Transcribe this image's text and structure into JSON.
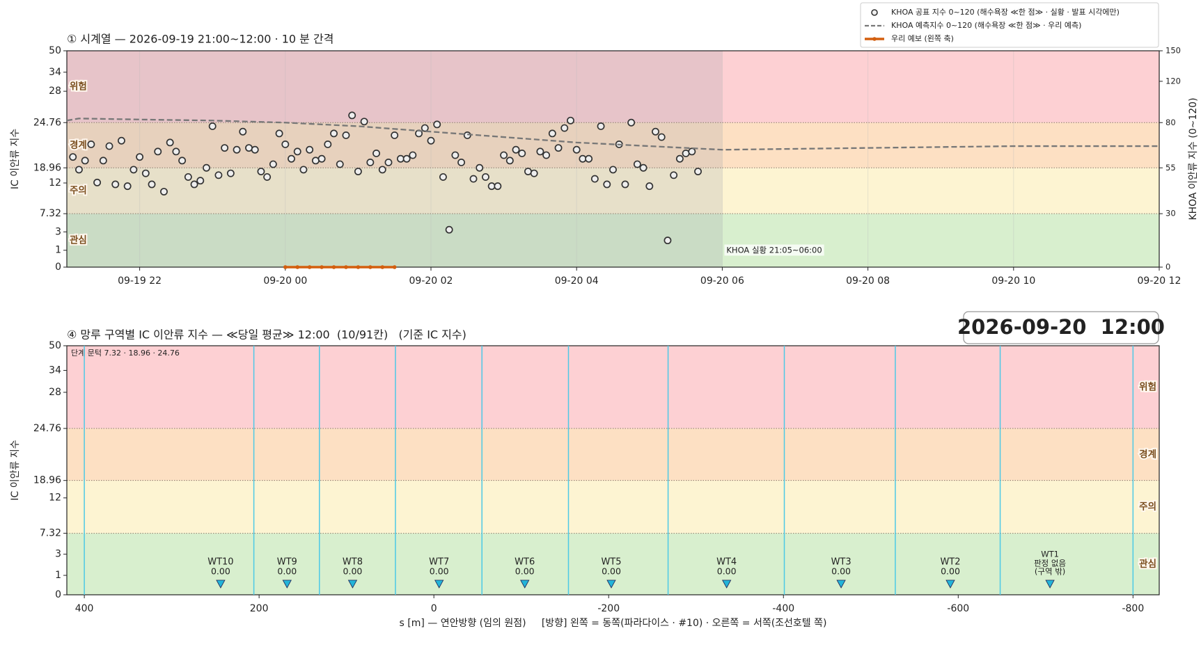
{
  "chart_data": [
    {
      "type": "scatter",
      "title": "① 시계열 — 2026-09-19 21:00~12:00 · 10 분 간격",
      "ylabel": "IC 이안류 지수",
      "y2label": "KHOA 이안류 지수 (0~120)",
      "xlim": [
        "09-19 21:00",
        "09-20 12:00"
      ],
      "xticks": [
        "09-19 22",
        "09-20 00",
        "09-20 02",
        "09-20 04",
        "09-20 06",
        "09-20 08",
        "09-20 10",
        "09-20 12"
      ],
      "ylim": [
        0,
        50
      ],
      "yticks": [
        0,
        1,
        3,
        7.32,
        12,
        18.96,
        24.76,
        28,
        34,
        50
      ],
      "y2lim": [
        0,
        150
      ],
      "y2ticks": [
        0,
        30,
        55,
        80,
        120,
        150
      ],
      "thresholds": [
        7.32,
        18.96,
        24.76
      ],
      "bands": [
        {
          "name": "관심",
          "color": "#d8efce"
        },
        {
          "name": "주의",
          "color": "#fdf4d2"
        },
        {
          "name": "경계",
          "color": "#fde0c3"
        },
        {
          "name": "위험",
          "color": "#fdd0d3"
        }
      ],
      "observed_until": "09-20 06:00",
      "observed_color": "#9a9aaa",
      "annotation": "KHOA 실황 21:05~06:00",
      "legend": "upper right",
      "grid": true,
      "series": [
        {
          "name": "KHOA 공표 지수 0~120 (해수욕장 ≪한 점≫ · 실황 · 발표 시각에만)",
          "style": "marker",
          "axis": "y2",
          "color": "#333333",
          "x": [
            "09-19 21:05",
            "09-19 21:10",
            "09-19 21:15",
            "09-19 21:20",
            "09-19 21:25",
            "09-19 21:30",
            "09-19 21:35",
            "09-19 21:40",
            "09-19 21:45",
            "09-19 21:50",
            "09-19 21:55",
            "09-19 22:00",
            "09-19 22:05",
            "09-19 22:10",
            "09-19 22:15",
            "09-19 22:20",
            "09-19 22:25",
            "09-19 22:30",
            "09-19 22:35",
            "09-19 22:40",
            "09-19 22:45",
            "09-19 22:50",
            "09-19 22:55",
            "09-19 23:00",
            "09-19 23:05",
            "09-19 23:10",
            "09-19 23:15",
            "09-19 23:20",
            "09-19 23:25",
            "09-19 23:30",
            "09-19 23:35",
            "09-19 23:40",
            "09-19 23:45",
            "09-19 23:50",
            "09-19 23:55",
            "09-20 00:00",
            "09-20 00:05",
            "09-20 00:10",
            "09-20 00:15",
            "09-20 00:20",
            "09-20 00:25",
            "09-20 00:30",
            "09-20 00:35",
            "09-20 00:40",
            "09-20 00:45",
            "09-20 00:50",
            "09-20 00:55",
            "09-20 01:00",
            "09-20 01:05",
            "09-20 01:10",
            "09-20 01:15",
            "09-20 01:20",
            "09-20 01:25",
            "09-20 01:30",
            "09-20 01:35",
            "09-20 01:40",
            "09-20 01:45",
            "09-20 01:50",
            "09-20 01:55",
            "09-20 02:00",
            "09-20 02:05",
            "09-20 02:10",
            "09-20 02:15",
            "09-20 02:20",
            "09-20 02:25",
            "09-20 02:30",
            "09-20 02:35",
            "09-20 02:40",
            "09-20 02:45",
            "09-20 02:50",
            "09-20 02:55",
            "09-20 03:00",
            "09-20 03:05",
            "09-20 03:10",
            "09-20 03:15",
            "09-20 03:20",
            "09-20 03:25",
            "09-20 03:30",
            "09-20 03:35",
            "09-20 03:40",
            "09-20 03:45",
            "09-20 03:50",
            "09-20 03:55",
            "09-20 04:00",
            "09-20 04:05",
            "09-20 04:10",
            "09-20 04:15",
            "09-20 04:20",
            "09-20 04:25",
            "09-20 04:30",
            "09-20 04:35",
            "09-20 04:40",
            "09-20 04:45",
            "09-20 04:50",
            "09-20 04:55",
            "09-20 05:00",
            "09-20 05:05",
            "09-20 05:10",
            "09-20 05:15",
            "09-20 05:20",
            "09-20 05:25",
            "09-20 05:30",
            "09-20 05:35",
            "09-20 05:40"
          ],
          "values": [
            61,
            54,
            59,
            68,
            47,
            59,
            67,
            46,
            70,
            45,
            54,
            61,
            52,
            46,
            64,
            42,
            69,
            64,
            59,
            50,
            46,
            48,
            55,
            78,
            51,
            66,
            52,
            65,
            75,
            66,
            65,
            53,
            50,
            57,
            74,
            68,
            60,
            64,
            54,
            65,
            59,
            60,
            68,
            74,
            57,
            73,
            87,
            53,
            81,
            58,
            63,
            54,
            58,
            73,
            60,
            60,
            62,
            74,
            77,
            70,
            79,
            50,
            21,
            62,
            58,
            73,
            49,
            55,
            50,
            45,
            45,
            62,
            59,
            65,
            63,
            53,
            52,
            64,
            62,
            74,
            66,
            77,
            82,
            65,
            60,
            60,
            49,
            78,
            46,
            54,
            68,
            46,
            80,
            57,
            55,
            45,
            75,
            72,
            15,
            51,
            60,
            63,
            64,
            53
          ]
        },
        {
          "name": "KHOA 예측지수 0~120 (해수욕장 ≪한 점≫ · 우리 예측)",
          "style": "dashed",
          "axis": "y2",
          "color": "#777777",
          "x": [
            "09-19 21:00",
            "09-19 21:10",
            "09-19 22:00",
            "09-19 23:00",
            "09-20 00:00",
            "09-20 01:00",
            "09-20 02:00",
            "09-20 03:00",
            "09-20 04:00",
            "09-20 05:00",
            "09-20 06:00",
            "09-20 08:00",
            "09-20 10:00",
            "09-20 12:00"
          ],
          "values": [
            82,
            84,
            83,
            82,
            80,
            78,
            75,
            72,
            69,
            67,
            65,
            66,
            67,
            67
          ]
        },
        {
          "name": "우리 예보 (왼쪽 축)",
          "style": "line",
          "color": "#d35f0f",
          "x": [
            "09-20 00:00",
            "09-20 00:10",
            "09-20 00:20",
            "09-20 00:30",
            "09-20 00:40",
            "09-20 00:50",
            "09-20 01:00",
            "09-20 01:10",
            "09-20 01:20",
            "09-20 01:30"
          ],
          "values": [
            0,
            0,
            0,
            0,
            0,
            0,
            0,
            0,
            0,
            0
          ]
        }
      ]
    },
    {
      "type": "scatter",
      "title": "④ 망루 구역별 IC 이안류 지수 — ≪당일 평균≫ 12:00  (10/91칸)   (기준 IC 지수)",
      "time": "2026-09-20  12:00",
      "xlabel": "s [m] — 연안방향 (임의 원점)     [방향] 왼쪽 = 동쪽(파라다이스 · #10) · 오른쪽 = 서쪽(조선호텔 쪽)",
      "ylabel": "IC 이안류 지수",
      "annotation": "단계 문턱 7.32 · 18.96 · 24.76",
      "xlim": [
        420,
        -830
      ],
      "xticks": [
        400,
        200,
        0,
        -200,
        -400,
        -600,
        -800
      ],
      "ylim": [
        0,
        50
      ],
      "yticks": [
        0,
        1,
        3,
        7.32,
        12,
        18.96,
        24.76,
        28,
        34,
        50
      ],
      "thresholds": [
        7.32,
        18.96,
        24.76
      ],
      "bands": [
        {
          "name": "관심",
          "color": "#d8efce"
        },
        {
          "name": "주의",
          "color": "#fdf4d2"
        },
        {
          "name": "경계",
          "color": "#fde0c3"
        },
        {
          "name": "위험",
          "color": "#fdd0d3"
        }
      ],
      "boundaries": [
        400,
        206,
        131,
        44,
        -55,
        -154,
        -268,
        -401,
        -528,
        -648,
        -800
      ],
      "boundary_color": "#4cc9e6",
      "categories": [
        "WT10",
        "WT9",
        "WT8",
        "WT7",
        "WT6",
        "WT5",
        "WT4",
        "WT3",
        "WT2",
        "WT1"
      ],
      "x": [
        244,
        168,
        93,
        -6,
        -104,
        -203,
        -335,
        -466,
        -591,
        -705
      ],
      "values": [
        0,
        0,
        0,
        0,
        0,
        0,
        0,
        0,
        0,
        null
      ],
      "value_labels": [
        "0.00",
        "0.00",
        "0.00",
        "0.00",
        "0.00",
        "0.00",
        "0.00",
        "0.00",
        "0.00",
        [
          "판정 없음",
          "(구역 밖)"
        ]
      ],
      "color": "#22b4d8"
    }
  ]
}
